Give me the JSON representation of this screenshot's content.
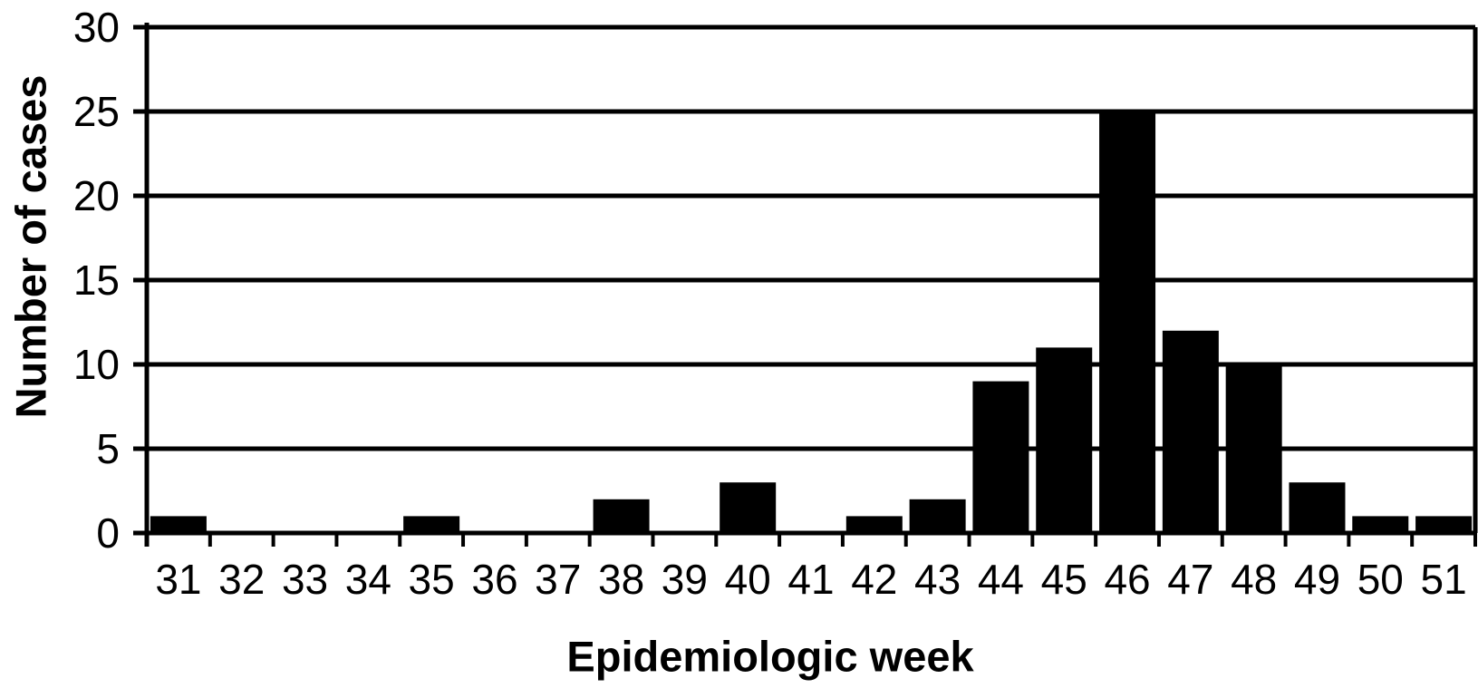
{
  "figure": {
    "background": "#ffffff",
    "bar_color": "#000000",
    "axis_color": "#000000"
  },
  "chart_data": {
    "type": "bar",
    "title": "",
    "xlabel": "Epidemiologic week",
    "ylabel": "Number of cases",
    "categories": [
      "31",
      "32",
      "33",
      "34",
      "35",
      "36",
      "37",
      "38",
      "39",
      "40",
      "41",
      "42",
      "43",
      "44",
      "45",
      "46",
      "47",
      "48",
      "49",
      "50",
      "51"
    ],
    "values": [
      1,
      0,
      0,
      0,
      1,
      0,
      0,
      2,
      0,
      3,
      0,
      1,
      2,
      9,
      11,
      25,
      12,
      10,
      3,
      1,
      1
    ],
    "yticks": [
      0,
      5,
      10,
      15,
      20,
      25,
      30
    ],
    "ylim": [
      0,
      30
    ],
    "grid": true,
    "legend": "none"
  }
}
